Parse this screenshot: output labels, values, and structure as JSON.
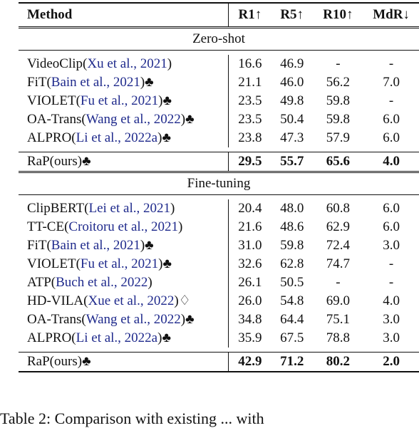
{
  "headers": [
    "Method",
    "R1↑",
    "R5↑",
    "R10↑",
    "MdR↓"
  ],
  "sections": [
    {
      "title": "Zero-shot",
      "rows": [
        {
          "name": "VideoClip(",
          "cite": "Xu et al., 2021",
          "close": ")",
          "mark": "",
          "vals": [
            "16.6",
            "46.9",
            "-",
            "-"
          ]
        },
        {
          "name": "FiT(",
          "cite": "Bain et al., 2021",
          "close": ")",
          "mark": "♣",
          "vals": [
            "21.1",
            "46.0",
            "56.2",
            "7.0"
          ]
        },
        {
          "name": "VIOLET(",
          "cite": "Fu et al., 2021",
          "close": ")",
          "mark": "♣",
          "vals": [
            "23.5",
            "49.8",
            "59.8",
            "-"
          ]
        },
        {
          "name": "OA-Trans(",
          "cite": "Wang et al., 2022",
          "close": ")",
          "mark": "♣",
          "vals": [
            "23.5",
            "50.4",
            "59.8",
            "6.0"
          ]
        },
        {
          "name": "ALPRO(",
          "cite": "Li et al., 2022a",
          "close": ")",
          "mark": "♣",
          "vals": [
            "23.8",
            "47.3",
            "57.9",
            "6.0"
          ]
        }
      ],
      "ours": {
        "name": "RaP(ours)",
        "mark": "♣",
        "vals": [
          "29.5",
          "55.7",
          "65.6",
          "4.0"
        ]
      }
    },
    {
      "title": "Fine-tuning",
      "rows": [
        {
          "name": "ClipBERT(",
          "cite": "Lei et al., 2021",
          "close": ")",
          "mark": "",
          "vals": [
            "20.4",
            "48.0",
            "60.8",
            "6.0"
          ]
        },
        {
          "name": "TT-CE(",
          "cite": "Croitoru et al., 2021",
          "close": ")",
          "mark": "",
          "vals": [
            "21.6",
            "48.6",
            "62.9",
            "6.0"
          ]
        },
        {
          "name": "FiT(",
          "cite": "Bain et al., 2021",
          "close": ")",
          "mark": "♣",
          "vals": [
            "31.0",
            "59.8",
            "72.4",
            "3.0"
          ]
        },
        {
          "name": "VIOLET(",
          "cite": "Fu et al., 2021",
          "close": ")",
          "mark": "♣",
          "vals": [
            "32.6",
            "62.8",
            "74.7",
            "-"
          ]
        },
        {
          "name": "ATP(",
          "cite": "Buch et al., 2022",
          "close": ")",
          "mark": "",
          "vals": [
            "26.1",
            "50.5",
            "-",
            "-"
          ]
        },
        {
          "name": "HD-VILA(",
          "cite": "Xue et al., 2022",
          "close": ")",
          "mark": "♢",
          "vals": [
            "26.0",
            "54.8",
            "69.0",
            "4.0"
          ]
        },
        {
          "name": "OA-Trans(",
          "cite": "Wang et al., 2022",
          "close": ")",
          "mark": "♣",
          "vals": [
            "34.8",
            "64.4",
            "75.1",
            "3.0"
          ]
        },
        {
          "name": "ALPRO(",
          "cite": "Li et al., 2022a",
          "close": ")",
          "mark": "♣",
          "vals": [
            "35.9",
            "67.5",
            "78.8",
            "3.0"
          ]
        }
      ],
      "ours": {
        "name": "RaP(ours)",
        "mark": "♣",
        "vals": [
          "42.9",
          "71.2",
          "80.2",
          "2.0"
        ]
      }
    }
  ],
  "caption": "Table 2: Comparison with existing ... with"
}
